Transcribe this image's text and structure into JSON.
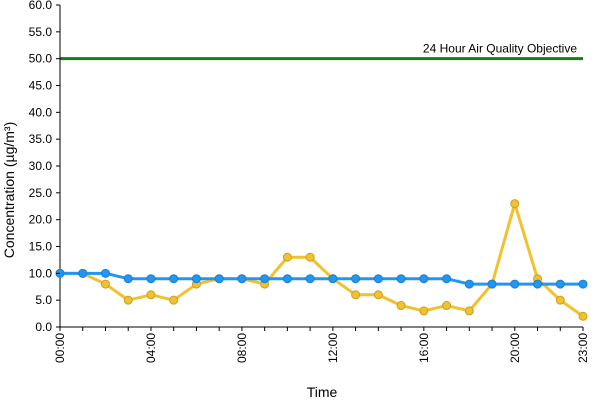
{
  "chart_data": {
    "type": "line",
    "title": "",
    "xlabel": "Time",
    "ylabel": "Concentration (µg/m³)",
    "ylim": [
      0,
      60
    ],
    "ytick_labels": [
      "0.0",
      "5.0",
      "10.0",
      "15.0",
      "20.0",
      "25.0",
      "30.0",
      "35.0",
      "40.0",
      "45.0",
      "50.0",
      "55.0",
      "60.0"
    ],
    "yticks": [
      0,
      5,
      10,
      15,
      20,
      25,
      30,
      35,
      40,
      45,
      50,
      55,
      60
    ],
    "x": [
      0,
      1,
      2,
      3,
      4,
      5,
      6,
      7,
      8,
      9,
      10,
      11,
      12,
      13,
      14,
      15,
      16,
      17,
      18,
      19,
      20,
      21,
      22,
      23
    ],
    "xtick_labels": [
      "00:00",
      "04:00",
      "08:00",
      "12:00",
      "16:00",
      "20:00",
      "23:00"
    ],
    "xticks": [
      0,
      4,
      8,
      12,
      16,
      20,
      23
    ],
    "grid": false,
    "legend": "none",
    "series": [
      {
        "color": "#f2c12e",
        "values": [
          10,
          10,
          8,
          5,
          6,
          5,
          8,
          9,
          9,
          8,
          13,
          13,
          9,
          6,
          6,
          4,
          3,
          4,
          3,
          8,
          23,
          9,
          5,
          2
        ]
      },
      {
        "color": "#2196f3",
        "values": [
          10,
          10,
          10,
          9,
          9,
          9,
          9,
          9,
          9,
          9,
          9,
          9,
          9,
          9,
          9,
          9,
          9,
          9,
          8,
          8,
          8,
          8,
          8,
          8
        ]
      }
    ],
    "reference_lines": [
      {
        "label": "24 Hour Air Quality Objective",
        "value": 50,
        "color": "#1a7a1a"
      }
    ]
  }
}
